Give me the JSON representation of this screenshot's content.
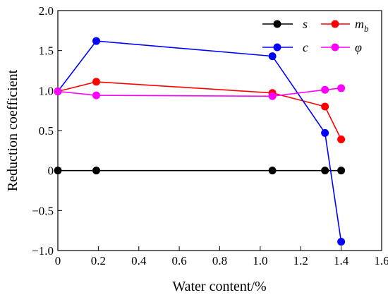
{
  "chart_data": {
    "type": "line",
    "xlabel": "Water content/%",
    "ylabel": "Reduction coefficient",
    "xlim": [
      0,
      1.6
    ],
    "ylim": [
      -1.0,
      2.0
    ],
    "xticks": [
      "0",
      "0.2",
      "0.4",
      "0.6",
      "0.8",
      "1.0",
      "1.2",
      "1.4",
      "1.6"
    ],
    "yticks": [
      "-1.0",
      "-0.5",
      "0",
      "0.5",
      "1.0",
      "1.5",
      "2.0"
    ],
    "legend_position": "top-right",
    "grid": false,
    "series": [
      {
        "name": "s",
        "color": "#000000",
        "x": [
          0,
          0.19,
          1.06,
          1.32,
          1.4
        ],
        "y": [
          0,
          0,
          0,
          0,
          0
        ]
      },
      {
        "name": "m_b",
        "color": "#ff0000",
        "x": [
          0,
          0.19,
          1.06,
          1.32,
          1.4
        ],
        "y": [
          0.99,
          1.11,
          0.97,
          0.8,
          0.39
        ]
      },
      {
        "name": "c",
        "color": "#0000ff",
        "x": [
          0,
          0.19,
          1.06,
          1.32,
          1.4
        ],
        "y": [
          0.99,
          1.62,
          1.43,
          0.47,
          -0.89
        ]
      },
      {
        "name": "φ",
        "color": "#ff00ff",
        "x": [
          0,
          0.19,
          1.06,
          1.32,
          1.4
        ],
        "y": [
          0.99,
          0.94,
          0.93,
          1.01,
          1.03
        ]
      }
    ]
  }
}
